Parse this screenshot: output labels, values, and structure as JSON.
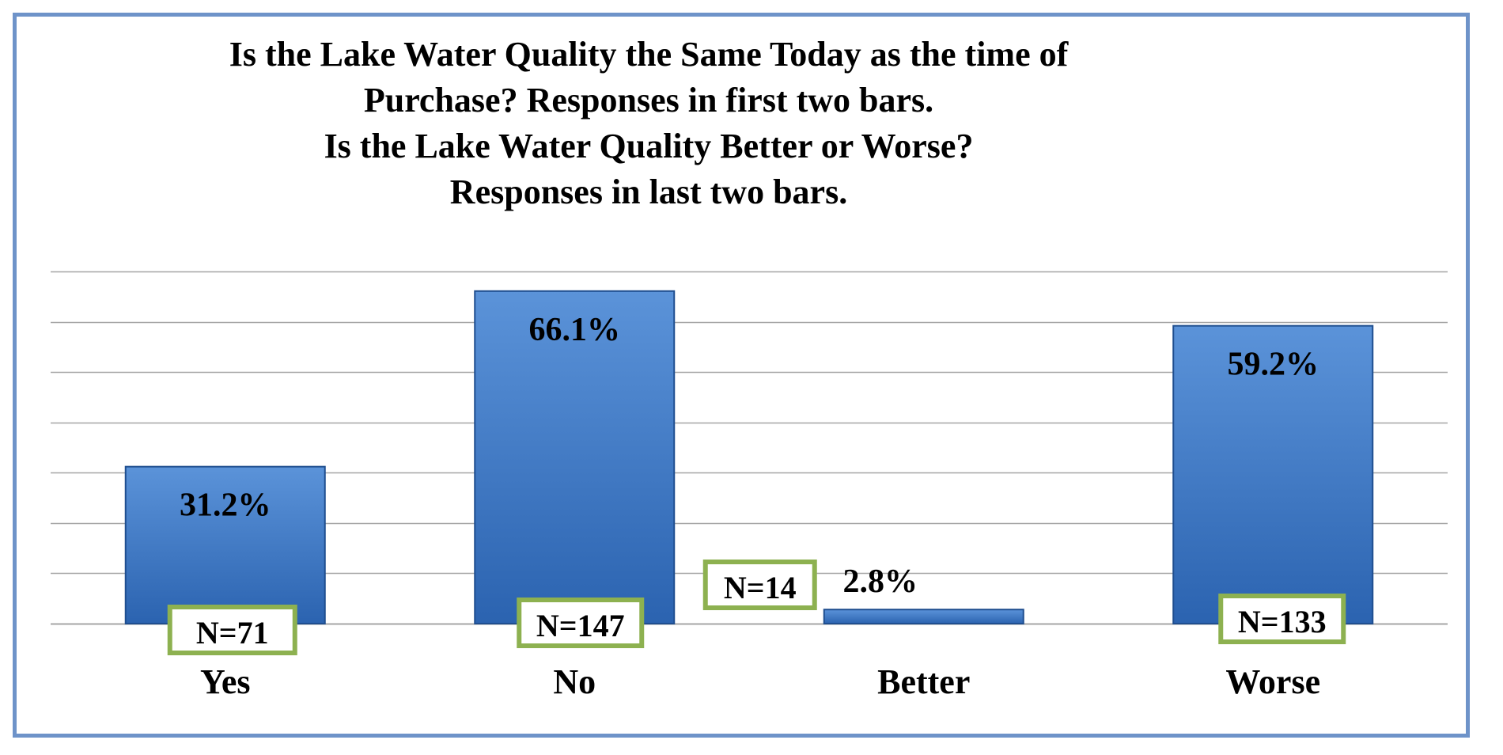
{
  "colors": {
    "frame_border": "#6e93c9",
    "bar_fill_top": "#5b93d9",
    "bar_fill_bottom": "#2b63b0",
    "bar_edge": "#1f4e8f",
    "gridline": "#a6a6a6",
    "n_box_border": "#8db150"
  },
  "chart_data": {
    "type": "bar",
    "title_lines": [
      "Is the Lake Water Quality the Same Today as the time of",
      "Purchase? Responses in first two bars.",
      "Is the Lake Water Quality Better or Worse?",
      "Responses in last two bars."
    ],
    "categories": [
      "Yes",
      "No",
      "Better",
      "Worse"
    ],
    "values": [
      31.2,
      66.1,
      2.8,
      59.2
    ],
    "value_labels": [
      "31.2%",
      "66.1%",
      "2.8%",
      "59.2%"
    ],
    "n_labels": [
      "N=71",
      "N=147",
      "N=14",
      "N=133"
    ],
    "ylim": [
      0,
      70
    ],
    "grid": true,
    "legend": "none",
    "xlabel": "",
    "ylabel": ""
  }
}
